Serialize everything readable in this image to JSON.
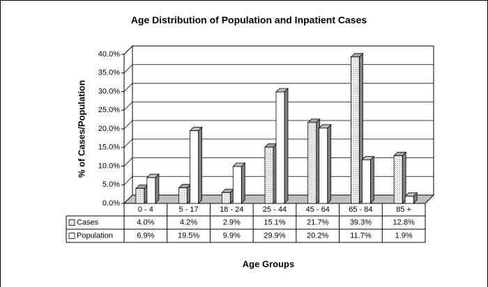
{
  "chart_data": {
    "type": "bar3d",
    "title": "Age Distribution of Population and Inpatient Cases",
    "x_label": "Age Groups",
    "y_label": "% of Cases/Population",
    "categories": [
      "0 - 4",
      "5 - 17",
      "18 - 24",
      "25 - 44",
      "45 - 64",
      "65 - 84",
      "85 +"
    ],
    "series": [
      {
        "name": "Cases",
        "color": "#d4d4d4",
        "values": [
          4.0,
          4.2,
          2.9,
          15.1,
          21.7,
          39.3,
          12.8
        ],
        "value_labels": [
          "4.0%",
          "4.2%",
          "2.9%",
          "15.1%",
          "21.7%",
          "39.3%",
          "12.8%"
        ]
      },
      {
        "name": "Population",
        "color": "#ffffff",
        "values": [
          6.9,
          19.5,
          9.9,
          29.9,
          20.2,
          11.7,
          1.9
        ],
        "value_labels": [
          "6.9%",
          "19.5%",
          "9.9%",
          "29.9%",
          "20.2%",
          "11.7%",
          "1.9%"
        ]
      }
    ],
    "ylim": [
      0,
      40
    ],
    "yticks": [
      {
        "value": 0,
        "label": "0.0%"
      },
      {
        "value": 5,
        "label": "5.0%"
      },
      {
        "value": 10,
        "label": "10.0%"
      },
      {
        "value": 15,
        "label": "15.0%"
      },
      {
        "value": 20,
        "label": "20.0%"
      },
      {
        "value": 25,
        "label": "25.0%"
      },
      {
        "value": 30,
        "label": "30.0%"
      },
      {
        "value": 35,
        "label": "35.0%"
      },
      {
        "value": 40,
        "label": "40.0%"
      }
    ],
    "grid": true
  }
}
